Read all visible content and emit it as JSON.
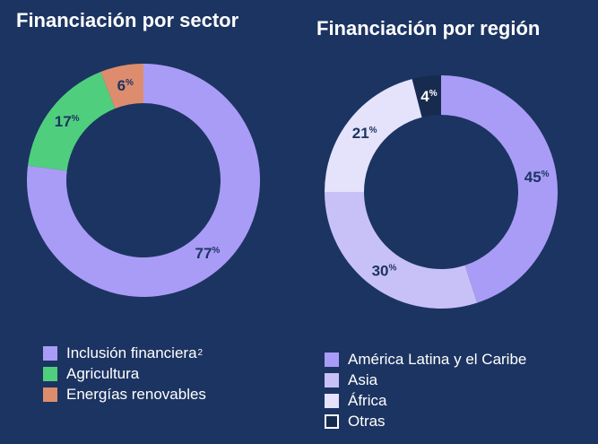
{
  "chart_data": [
    {
      "type": "pie",
      "title": "Financiación por sector",
      "slices": [
        {
          "name": "Inclusión financiera",
          "value": 77,
          "label": "77",
          "color": "#a99cf6",
          "label_color": "#1c3461"
        },
        {
          "name": "Agricultura",
          "value": 17,
          "label": "17",
          "color": "#4fcf7e",
          "label_color": "#1c3461"
        },
        {
          "name": "Energías renovables",
          "value": 6,
          "label": "6",
          "color": "#dd8d6e",
          "label_color": "#1c3461"
        }
      ],
      "legend": [
        {
          "text": "Inclusión financiera",
          "sup": "2"
        },
        {
          "text": "Agricultura",
          "sup": ""
        },
        {
          "text": "Energías renovables",
          "sup": ""
        }
      ],
      "unit": "%",
      "legend_position": "bottom"
    },
    {
      "type": "pie",
      "title": "Financiación por región",
      "slices": [
        {
          "name": "América Latina y el Caribe",
          "value": 45,
          "label": "45",
          "color": "#a99cf6",
          "label_color": "#1c3461"
        },
        {
          "name": "Asia",
          "value": 30,
          "label": "30",
          "color": "#c8c1f7",
          "label_color": "#1c3461"
        },
        {
          "name": "África",
          "value": 21,
          "label": "21",
          "color": "#e5e2fb",
          "label_color": "#1c3461"
        },
        {
          "name": "Otras",
          "value": 4,
          "label": "4",
          "color": "#172b4f",
          "label_color": "#ffffff"
        }
      ],
      "legend": [
        {
          "text": "América Latina y el Caribe",
          "sup": ""
        },
        {
          "text": "Asia",
          "sup": ""
        },
        {
          "text": "África",
          "sup": ""
        },
        {
          "text": "Otras",
          "sup": ""
        }
      ],
      "unit": "%",
      "legend_position": "bottom"
    }
  ]
}
